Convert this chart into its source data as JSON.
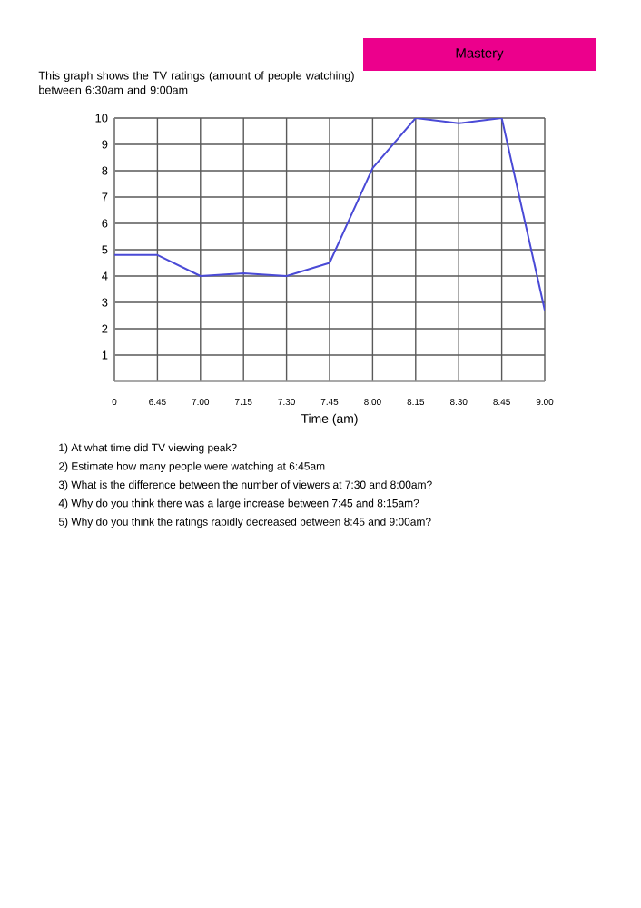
{
  "chart_data": {
    "type": "line",
    "title": "This graph shows the TV ratings (amount of people watching) between 6:30am and 9:00am",
    "xlabel": "Time (am)",
    "categories": [
      "0",
      "6.45",
      "7.00",
      "7.15",
      "7.30",
      "7.45",
      "8.00",
      "8.15",
      "8.30",
      "8.45",
      "9.00"
    ],
    "series": [
      {
        "color": "#4a4ad6",
        "values": [
          4.8,
          4.8,
          4.0,
          4.1,
          4.0,
          4.5,
          8.1,
          10,
          9.8,
          10,
          2.7
        ]
      }
    ],
    "ylim": [
      0,
      10
    ],
    "yticks": [
      1,
      2,
      3,
      4,
      5,
      6,
      7,
      8,
      9,
      10
    ],
    "grid": true,
    "marker": "none",
    "line_style": "solid",
    "annotations": [
      "Mastery",
      "1)  At what time did TV viewing peak?",
      "2)  Estimate how many people were watching at 6:45am",
      "3)  What is the difference between the number of viewers at 7:30 and 8:00am?",
      "4)  Why do you think there was a large increase between 7:45 and 8:15am?",
      "5)  Why do you think the ratings rapidly decreased between 8:45 and 9:00am?"
    ]
  }
}
